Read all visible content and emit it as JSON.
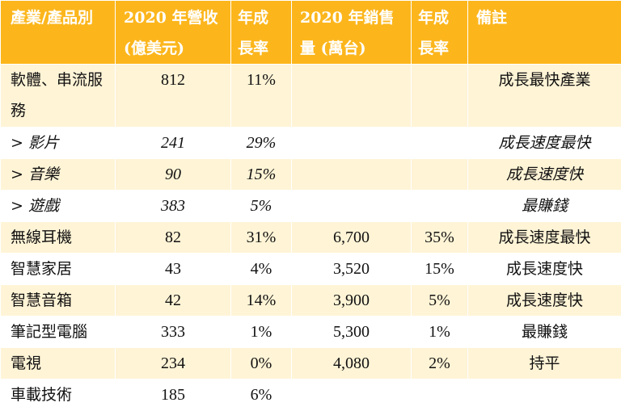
{
  "headers": [
    {
      "l1": "產業/產品別",
      "l2": ""
    },
    {
      "l1": "2020 年營收",
      "l2": "(億美元)"
    },
    {
      "l1": "年成",
      "l2": "長率"
    },
    {
      "l1": "2020 年銷售",
      "l2": "量 (萬台)"
    },
    {
      "l1": "年成",
      "l2": "長率"
    },
    {
      "l1": "備註",
      "l2": ""
    }
  ],
  "rows": [
    {
      "name": "軟體、串流服務",
      "revenue": "812",
      "rev_growth": "11%",
      "units": "",
      "unit_growth": "",
      "note": "成長最快產業"
    },
    {
      "name": "> 影片",
      "revenue": "241",
      "rev_growth": "29%",
      "units": "",
      "unit_growth": "",
      "note": "成長速度最快"
    },
    {
      "name": "> 音樂",
      "revenue": "90",
      "rev_growth": "15%",
      "units": "",
      "unit_growth": "",
      "note": "成長速度快"
    },
    {
      "name": "> 遊戲",
      "revenue": "383",
      "rev_growth": "5%",
      "units": "",
      "unit_growth": "",
      "note": "最賺錢"
    },
    {
      "name": "無線耳機",
      "revenue": "82",
      "rev_growth": "31%",
      "units": "6,700",
      "unit_growth": "35%",
      "note": "成長速度最快"
    },
    {
      "name": "智慧家居",
      "revenue": "43",
      "rev_growth": "4%",
      "units": "3,520",
      "unit_growth": "15%",
      "note": "成長速度快"
    },
    {
      "name": "智慧音箱",
      "revenue": "42",
      "rev_growth": "14%",
      "units": "3,900",
      "unit_growth": "5%",
      "note": "成長速度快"
    },
    {
      "name": "筆記型電腦",
      "revenue": "333",
      "rev_growth": "1%",
      "units": "5,300",
      "unit_growth": "1%",
      "note": "最賺錢"
    },
    {
      "name": "電視",
      "revenue": "234",
      "rev_growth": "0%",
      "units": "4,080",
      "unit_growth": "2%",
      "note": "持平"
    },
    {
      "name": "車載技術",
      "revenue": "185",
      "rev_growth": "6%",
      "units": "",
      "unit_growth": "",
      "note": ""
    }
  ]
}
